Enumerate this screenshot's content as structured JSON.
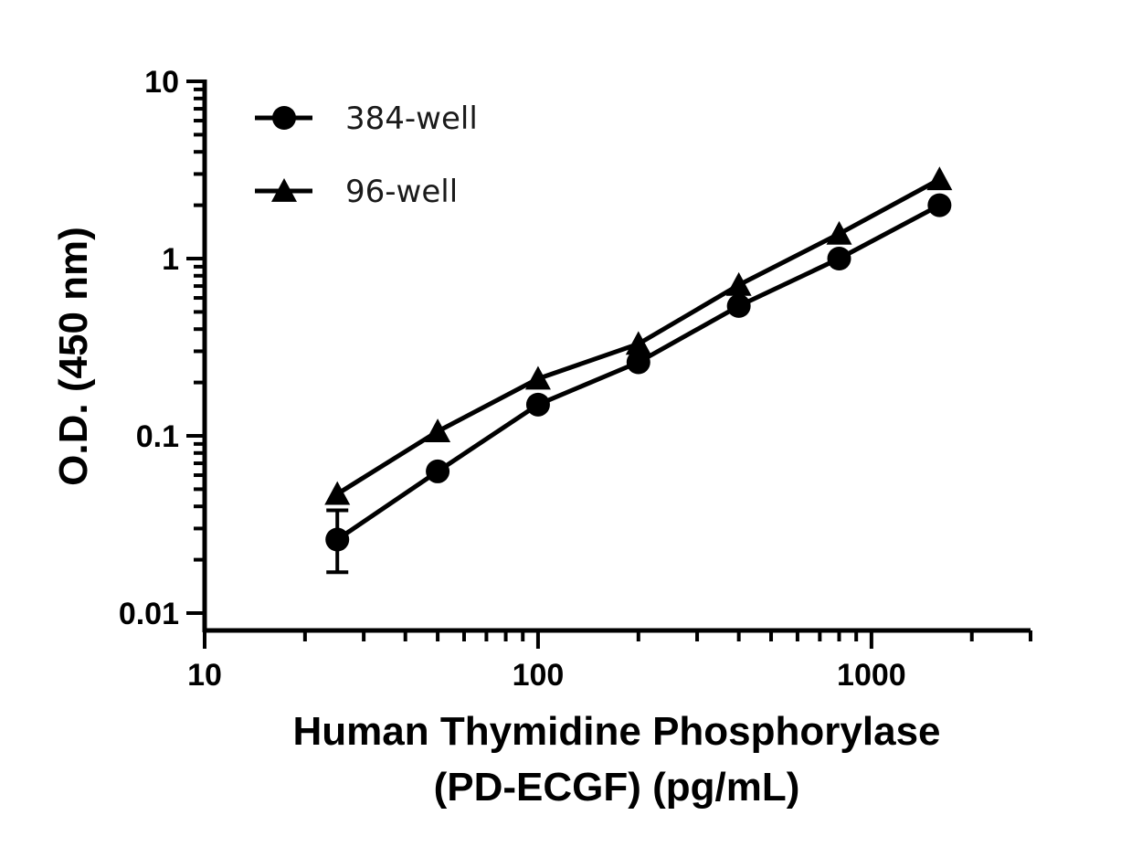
{
  "chart_data": {
    "type": "line",
    "xscale": "log",
    "yscale": "log",
    "xlim": [
      10,
      3000
    ],
    "ylim": [
      0.01,
      10
    ],
    "x_ticks": [
      "10",
      "100",
      "1000"
    ],
    "y_ticks": [
      "0.01",
      "0.1",
      "1",
      "10"
    ],
    "xlabel_lines": [
      "Human Thymidine Phosphorylase",
      "(PD-ECGF) (pg/mL)"
    ],
    "ylabel": "O.D. (450 nm)",
    "legend_position": "top-left",
    "grid": false,
    "series": [
      {
        "name": "384-well",
        "marker": "circle",
        "color": "#000000",
        "x": [
          25,
          50,
          100,
          200,
          400,
          800,
          1600
        ],
        "y": [
          0.026,
          0.063,
          0.15,
          0.26,
          0.54,
          1.0,
          2.0
        ],
        "error_bars": [
          {
            "x": 25,
            "low": 0.017,
            "high": 0.038
          }
        ]
      },
      {
        "name": "96-well",
        "marker": "triangle",
        "color": "#000000",
        "x": [
          25,
          50,
          100,
          200,
          400,
          800,
          1600
        ],
        "y": [
          0.047,
          0.106,
          0.21,
          0.33,
          0.71,
          1.38,
          2.8
        ]
      }
    ]
  }
}
